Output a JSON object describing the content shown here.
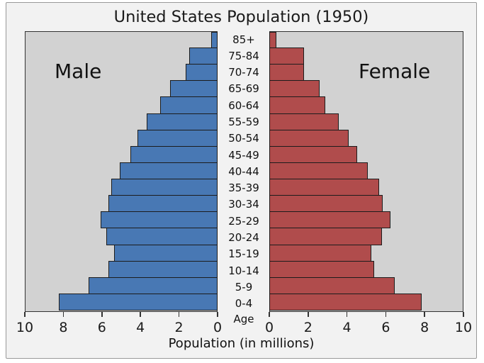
{
  "chart_data": {
    "type": "bar",
    "subtype": "population-pyramid",
    "title": "United States Population (1950)",
    "xlabel": "Population (in millions)",
    "age_axis_label": "Age",
    "left_panel_label": "Male",
    "right_panel_label": "Female",
    "age_groups_top_to_bottom": [
      "85+",
      "75-84",
      "70-74",
      "65-69",
      "60-64",
      "55-59",
      "50-54",
      "45-49",
      "40-44",
      "35-39",
      "30-34",
      "25-29",
      "20-24",
      "15-19",
      "10-14",
      "5-9",
      "0-4"
    ],
    "series": [
      {
        "name": "Male",
        "side": "left",
        "color": "#4878b4",
        "values_top_to_bottom": [
          0.35,
          1.5,
          1.65,
          2.5,
          3.0,
          3.7,
          4.2,
          4.55,
          5.1,
          5.55,
          5.7,
          6.1,
          5.8,
          5.4,
          5.7,
          6.75,
          8.3
        ]
      },
      {
        "name": "Female",
        "side": "right",
        "color": "#b04c4c",
        "values_top_to_bottom": [
          0.35,
          1.8,
          1.8,
          2.6,
          2.9,
          3.6,
          4.1,
          4.55,
          5.1,
          5.7,
          5.9,
          6.3,
          5.85,
          5.3,
          5.45,
          6.5,
          7.9
        ]
      }
    ],
    "x_ticks": [
      0,
      2,
      4,
      6,
      8,
      10
    ],
    "xlim": [
      0,
      10
    ],
    "grid": false,
    "legend_position": "none"
  },
  "colors": {
    "male_bar": "#4878b4",
    "female_bar": "#b04c4c",
    "bar_edge": "#1c1c1c",
    "plot_background": "#d2d2d2",
    "figure_background": "#f2f2f2",
    "spine": "#333333",
    "text": "#111111"
  }
}
